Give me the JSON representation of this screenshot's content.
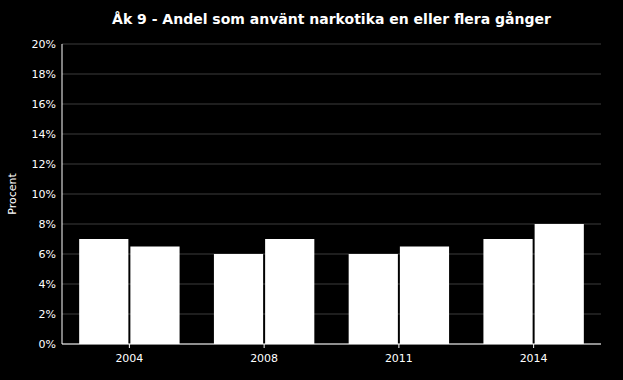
{
  "chart_data": {
    "type": "bar",
    "title": "Åk 9 - Andel som använt narkotika en eller flera gånger",
    "ylabel": "Procent",
    "categories": [
      "2004",
      "2008",
      "2011",
      "2014"
    ],
    "series": [
      {
        "color": "#ffffff",
        "values": [
          7.0,
          6.0,
          6.0,
          7.0
        ]
      },
      {
        "color": "#ffffff",
        "values": [
          6.5,
          7.0,
          6.5,
          8.0
        ]
      }
    ],
    "ylim": [
      0,
      20
    ],
    "yticks": [
      {
        "value": 0,
        "label": "0%"
      },
      {
        "value": 2,
        "label": "2%"
      },
      {
        "value": 4,
        "label": "4%"
      },
      {
        "value": 6,
        "label": "6%"
      },
      {
        "value": 8,
        "label": "8%"
      },
      {
        "value": 10,
        "label": "10%"
      },
      {
        "value": 12,
        "label": "12%"
      },
      {
        "value": 14,
        "label": "14%"
      },
      {
        "value": 16,
        "label": "16%"
      },
      {
        "value": 18,
        "label": "18%"
      },
      {
        "value": 20,
        "label": "20%"
      }
    ],
    "grid": true
  }
}
